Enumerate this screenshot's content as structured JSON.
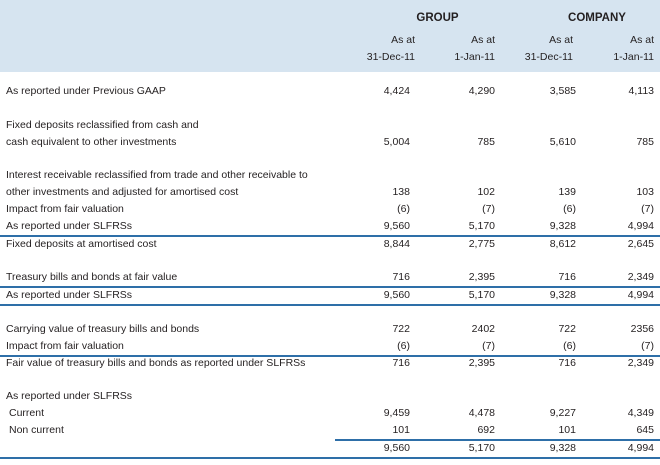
{
  "header": {
    "group": "GROUP",
    "company": "COMPANY",
    "col1": [
      "As at",
      "31-Dec-11"
    ],
    "col2": [
      "As at",
      "1-Jan-11"
    ],
    "col3": [
      "As at",
      "31-Dec-11"
    ],
    "col4": [
      "As at",
      "1-Jan-11"
    ]
  },
  "rows": [
    {
      "label": "As reported under Previous GAAP",
      "v": [
        "4,424",
        "4,290",
        "3,585",
        "4,113"
      ]
    },
    {
      "label": "Fixed deposits reclassified from cash and",
      "v": [
        "",
        "",
        "",
        ""
      ]
    },
    {
      "label": "cash equivalent to other investments",
      "v": [
        "5,004",
        "785",
        "5,610",
        "785"
      ]
    },
    {
      "label": "Interest receivable reclassified from trade and other receivable to",
      "v": [
        "",
        "",
        "",
        ""
      ]
    },
    {
      "label": "other investments and adjusted for amortised cost",
      "v": [
        "138",
        "102",
        "139",
        "103"
      ]
    },
    {
      "label": "Impact from fair valuation",
      "v": [
        "(6)",
        "(7)",
        "(6)",
        "(7)"
      ]
    },
    {
      "label": "As reported under SLFRSs",
      "v": [
        "9,560",
        "5,170",
        "9,328",
        "4,994"
      ]
    },
    {
      "label": "Fixed deposits at amortised cost",
      "v": [
        "8,844",
        "2,775",
        "8,612",
        "2,645"
      ]
    },
    {
      "label": "Treasury bills and bonds at fair value",
      "v": [
        "716",
        "2,395",
        "716",
        "2,349"
      ]
    },
    {
      "label": "As reported under SLFRSs",
      "v": [
        "9,560",
        "5,170",
        "9,328",
        "4,994"
      ]
    },
    {
      "label": "Carrying value of treasury bills and bonds",
      "v": [
        "722",
        "2402",
        "722",
        "2356"
      ]
    },
    {
      "label": "Impact from fair valuation",
      "v": [
        "(6)",
        "(7)",
        "(6)",
        "(7)"
      ]
    },
    {
      "label": "Fair value of treasury bills and bonds as reported under SLFRSs",
      "v": [
        "716",
        "2,395",
        "716",
        "2,349"
      ]
    },
    {
      "label": "As reported under SLFRSs",
      "v": [
        "",
        "",
        "",
        ""
      ]
    },
    {
      "label": "Current",
      "v": [
        "9,459",
        "4,478",
        "9,227",
        "4,349"
      ]
    },
    {
      "label": "Non current",
      "v": [
        "101",
        "692",
        "101",
        "645"
      ]
    },
    {
      "label": "",
      "v": [
        "9,560",
        "5,170",
        "9,328",
        "4,994"
      ]
    }
  ]
}
